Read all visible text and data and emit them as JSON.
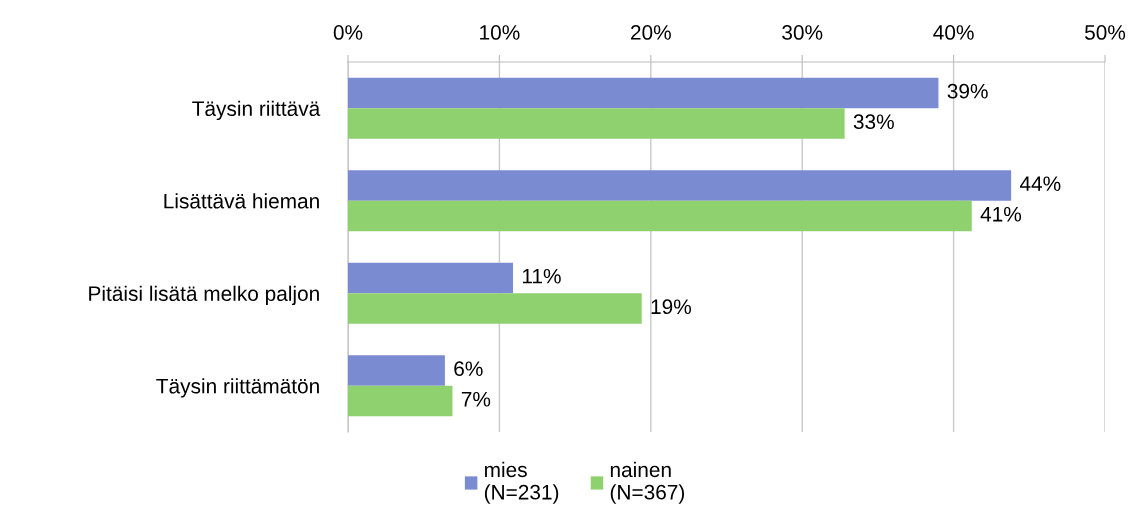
{
  "chart_data": {
    "type": "bar",
    "orientation": "horizontal",
    "categories": [
      "Täysin riittävä",
      "Lisättävä hieman",
      "Pitäisi lisätä melko paljon",
      "Täysin riittämätön"
    ],
    "series": [
      {
        "name": "mies\n(N=231)",
        "color": "#7b8bd1",
        "values": [
          39.0,
          43.8,
          10.9,
          6.4
        ],
        "value_labels": [
          "39%",
          "44%",
          "11%",
          "6%"
        ]
      },
      {
        "name": "nainen\n(N=367)",
        "color": "#8fd16f",
        "values": [
          32.8,
          41.2,
          19.4,
          6.9
        ],
        "value_labels": [
          "33%",
          "41%",
          "19%",
          "7%"
        ]
      }
    ],
    "xlim": [
      0,
      50
    ],
    "xticks": [
      {
        "value": 0,
        "label": "0%"
      },
      {
        "value": 10,
        "label": "10%"
      },
      {
        "value": 20,
        "label": "20%"
      },
      {
        "value": 30,
        "label": "30%"
      },
      {
        "value": 40,
        "label": "40%"
      },
      {
        "value": 50,
        "label": "50%"
      }
    ],
    "grid": "x",
    "legend": "bottom"
  }
}
